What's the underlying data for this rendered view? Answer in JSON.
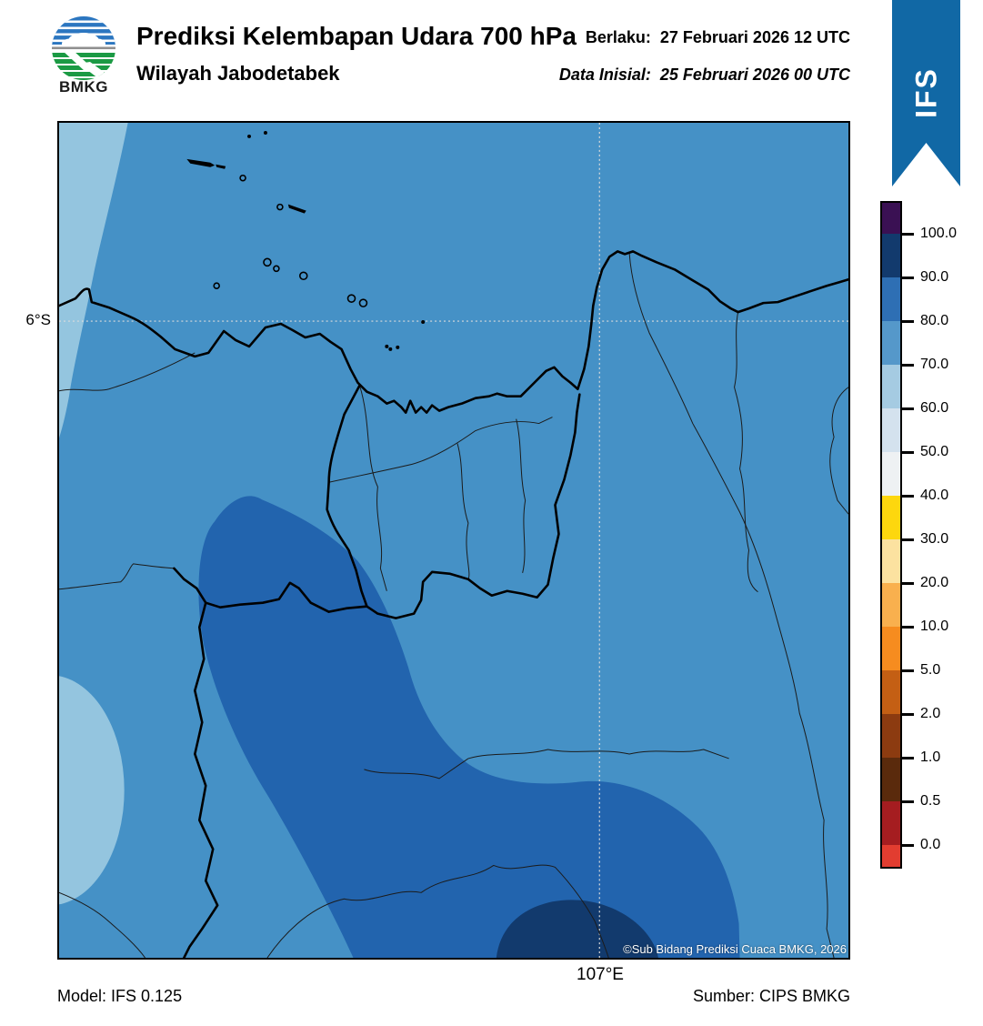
{
  "header": {
    "logo_text": "BMKG",
    "title": "Prediksi Kelembapan Udara 700 hPa",
    "subtitle": "Wilayah Jabodetabek",
    "valid_label": "Berlaku:",
    "valid_value": "27 Februari 2026 12 UTC",
    "init_label": "Data Inisial:",
    "init_value": "25 Februari 2026 00 UTC",
    "ribbon_text": "IFS",
    "ribbon_color": "#1168a5"
  },
  "map": {
    "y_tick_label": "6°S",
    "x_tick_label": "107°E",
    "copyright": "©Sub Bidang Prediksi Cuaca BMKG, 2026",
    "colors": {
      "base_70_80": "#4591c6",
      "band_60_70": "#94c5df",
      "band_80_90": "#2264ae",
      "band_90_100": "#123a6d",
      "coastline": "#000000",
      "thin_boundary": "#1b1b1b",
      "grid": "#dcdcdc"
    }
  },
  "footer": {
    "model": "Model: IFS 0.125",
    "source": "Sumber: CIPS BMKG"
  },
  "chart_data": {
    "type": "heatmap",
    "title": "Prediksi Kelembapan Udara 700 hPa",
    "region": "Wilayah Jabodetabek",
    "variable": "Kelembapan udara (relative humidity) 700 hPa, %",
    "valid_time": "27 Februari 2026 12 UTC",
    "initial_time": "25 Februari 2026 00 UTC",
    "model": "IFS 0.125",
    "source": "CIPS BMKG",
    "x_ticks": [
      "107°E"
    ],
    "y_ticks": [
      "6°S"
    ],
    "grid": "dashed lat/lon lines at 6°S and 107°E",
    "legend_position": "right vertical colorbar, extend both ends",
    "colorbar": {
      "tick_labels": [
        "100.0",
        "90.0",
        "80.0",
        "70.0",
        "60.0",
        "50.0",
        "40.0",
        "30.0",
        "20.0",
        "10.0",
        "5.0",
        "2.0",
        "1.0",
        "0.5",
        "0.0"
      ],
      "segment_colors_top_to_bottom": [
        "#3a1053",
        "#123a6d",
        "#2e6fb4",
        "#5598ca",
        "#a5cbe2",
        "#d4e2ee",
        "#eef1f3",
        "#fdd70e",
        "#fce2a0",
        "#f9b04e",
        "#f68c1f",
        "#c45f14",
        "#8c3b10",
        "#5a2a0c",
        "#a51d20",
        "#e23d30"
      ],
      "boundaries": [
        0.0,
        0.5,
        1.0,
        2.0,
        5.0,
        10.0,
        20.0,
        30.0,
        40.0,
        50.0,
        60.0,
        70.0,
        80.0,
        90.0,
        100.0
      ]
    },
    "field_values": {
      "dominant_band_percent": "70-80",
      "features": [
        {
          "band_percent": "60-70",
          "location": "strip along upper-left edge and oval blob at mid-left edge"
        },
        {
          "band_percent": "80-90",
          "location": "large comma-shaped blob over center-south, widening along bottom"
        },
        {
          "band_percent": "90-100",
          "location": "small dome on bottom edge near 107°E"
        }
      ]
    }
  }
}
